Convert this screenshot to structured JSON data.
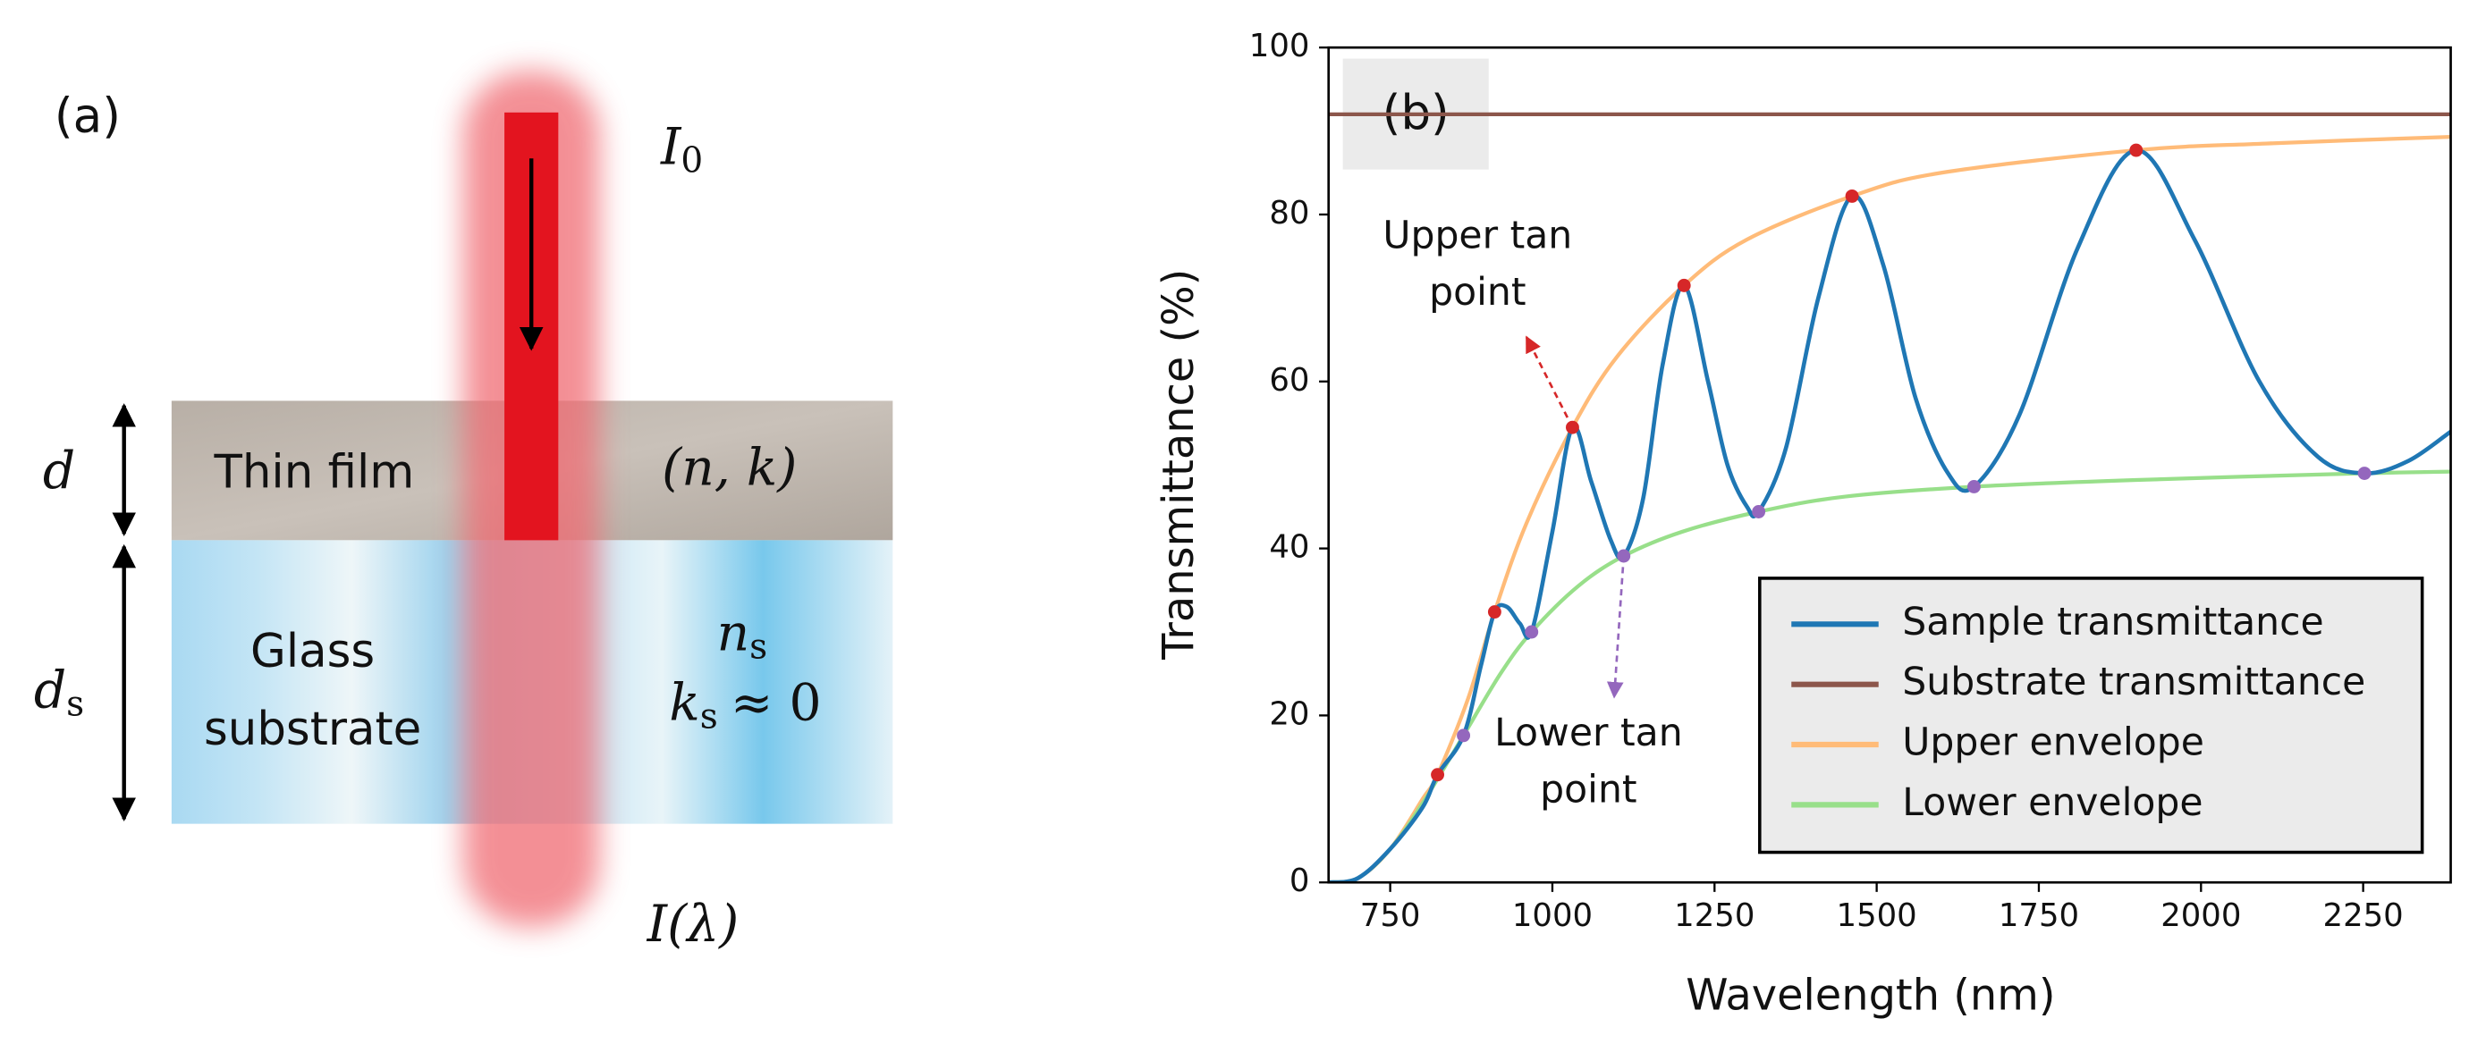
{
  "diagram": {
    "panel": "(a)",
    "incident": {
      "symbol": "I",
      "sub": "0"
    },
    "film_thickness": "d",
    "substrate_thickness": {
      "symbol": "d",
      "sub": "s"
    },
    "film": "Thin film",
    "film_constants": "(n, k)",
    "substrate": [
      "Glass",
      "substrate"
    ],
    "substrate_n": {
      "symbol": "n",
      "sub": "s"
    },
    "substrate_k": {
      "symbol": "k",
      "sub": "s",
      "rest": "≈ 0"
    },
    "transmitted": "I(λ)"
  },
  "chart_data": {
    "type": "line",
    "panel": "(b)",
    "xlabel": "Wavelength (nm)",
    "ylabel": "Transmittance (%)",
    "xlim": [
      655,
      2385
    ],
    "ylim": [
      0,
      100
    ],
    "xticks": [
      750,
      1000,
      1250,
      1500,
      1750,
      2000,
      2250
    ],
    "yticks": [
      0,
      20,
      40,
      60,
      80,
      100
    ],
    "legend": "lower right",
    "series": [
      {
        "name": "Sample transmittance",
        "color": "#1f77b4",
        "x": [
          655,
          700,
          750,
          800,
          823,
          863,
          890,
          911,
          930,
          950,
          968,
          1000,
          1031,
          1060,
          1090,
          1110,
          1140,
          1170,
          1203,
          1240,
          1270,
          1300,
          1318,
          1360,
          1410,
          1462,
          1510,
          1560,
          1610,
          1650,
          1720,
          1810,
          1900,
          1990,
          2090,
          2180,
          2252,
          2320,
          2385
        ],
        "values": [
          0,
          0.5,
          4,
          9,
          12.9,
          17.6,
          26,
          32.4,
          33,
          31,
          30,
          42,
          54.5,
          48,
          41,
          39.1,
          46,
          62,
          71.5,
          60,
          50,
          45,
          44.4,
          52,
          70,
          82.2,
          74,
          58,
          49,
          47.4,
          56,
          76,
          87.7,
          77,
          60,
          51,
          49,
          50.5,
          54
        ]
      },
      {
        "name": "Substrate transmittance",
        "color": "#8c564b",
        "x": [
          655,
          2385
        ],
        "values": [
          92,
          92
        ]
      },
      {
        "name": "Upper envelope",
        "color": "#ffbb78",
        "x": [
          655,
          700,
          750,
          800,
          823,
          870,
          911,
          960,
          1031,
          1100,
          1203,
          1300,
          1462,
          1600,
          1900,
          2100,
          2385
        ],
        "values": [
          0,
          0.5,
          4,
          10,
          12.9,
          22,
          32.4,
          43,
          54.5,
          63,
          71.5,
          77,
          82.2,
          85,
          87.7,
          88.5,
          89.3
        ]
      },
      {
        "name": "Lower envelope",
        "color": "#98df8a",
        "x": [
          655,
          700,
          750,
          800,
          863,
          920,
          968,
          1040,
          1110,
          1200,
          1318,
          1450,
          1650,
          1900,
          2252,
          2385
        ],
        "values": [
          0,
          0.5,
          4,
          9.5,
          17.6,
          25,
          30,
          35.5,
          39.1,
          42,
          44.4,
          46.2,
          47.4,
          48.2,
          49,
          49.2
        ]
      }
    ],
    "upper_tan_points": {
      "color": "#d62728",
      "x": [
        823,
        911,
        1031,
        1203,
        1462,
        1900
      ],
      "values": [
        12.9,
        32.4,
        54.5,
        71.5,
        82.2,
        87.7
      ]
    },
    "lower_tan_points": {
      "color": "#9467bd",
      "x": [
        863,
        968,
        1110,
        1318,
        1650,
        2252
      ],
      "values": [
        17.6,
        30,
        39.1,
        44.4,
        47.4,
        49
      ]
    },
    "annotations": [
      {
        "text": [
          "Upper tan",
          "point"
        ],
        "color": "#d62728"
      },
      {
        "text": [
          "Lower tan",
          "point"
        ],
        "color": "#9467bd"
      }
    ]
  }
}
